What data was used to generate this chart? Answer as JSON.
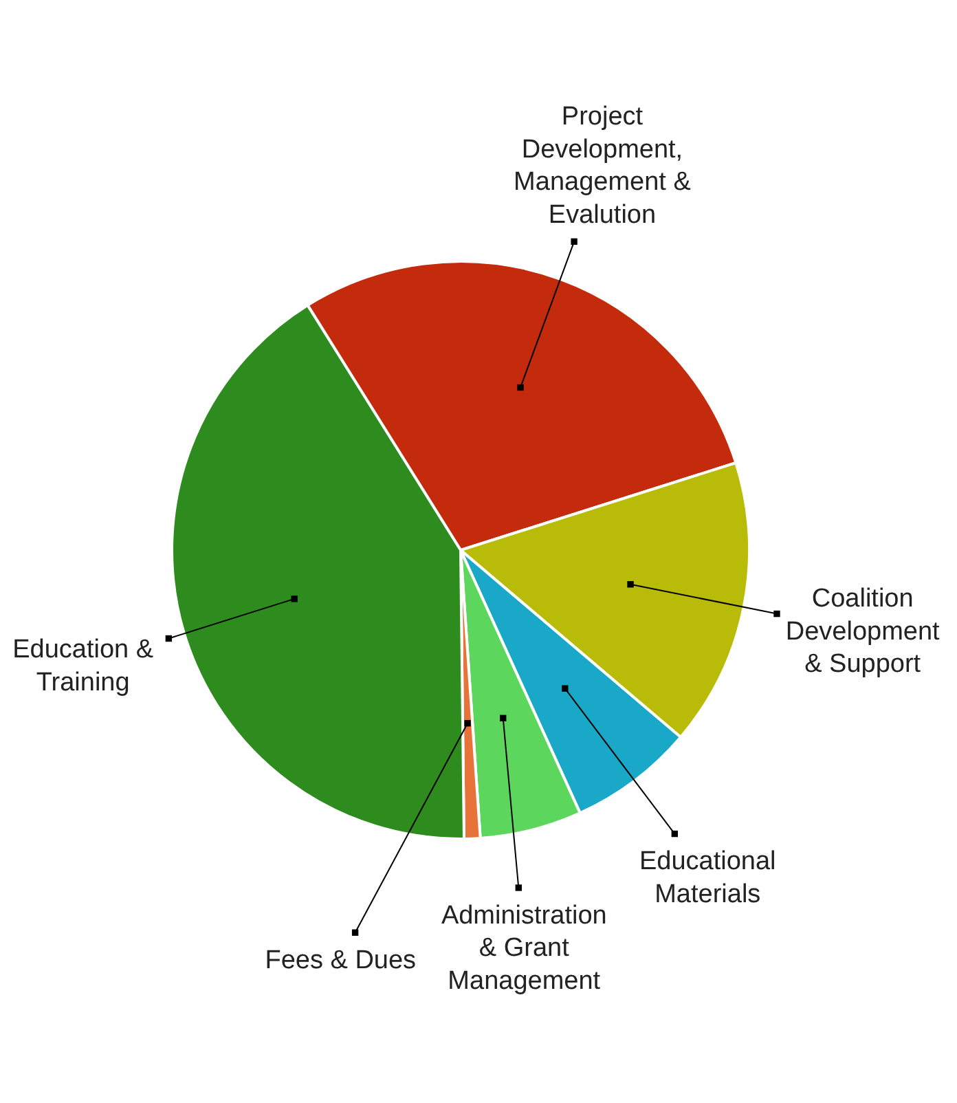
{
  "chart_data": {
    "type": "pie",
    "categories": [
      "Project Development, Management & Evalution",
      "Coalition Development & Support",
      "Educational Materials",
      "Administration & Grant Management",
      "Fees & Dues",
      "Education & Training"
    ],
    "values": [
      29.0,
      16.1,
      7.0,
      5.7,
      0.9,
      41.3
    ],
    "colors": [
      "#c42a0c",
      "#b8bc08",
      "#1aa8c8",
      "#5cd65c",
      "#e8733a",
      "#2e8b1e"
    ]
  }
}
